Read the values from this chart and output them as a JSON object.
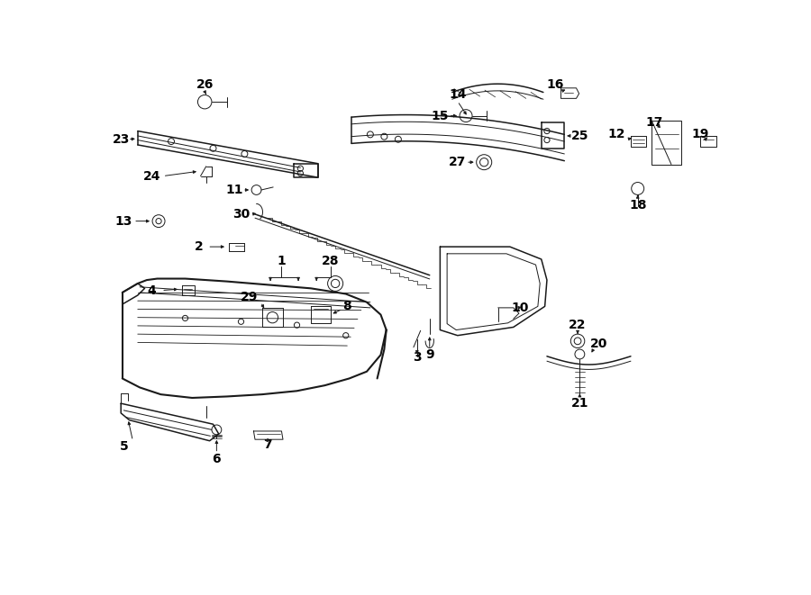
{
  "bg_color": "#ffffff",
  "line_color": "#1a1a1a",
  "text_color": "#000000",
  "lw_thin": 0.7,
  "lw_med": 1.1,
  "lw_thick": 1.5,
  "fs": 10
}
